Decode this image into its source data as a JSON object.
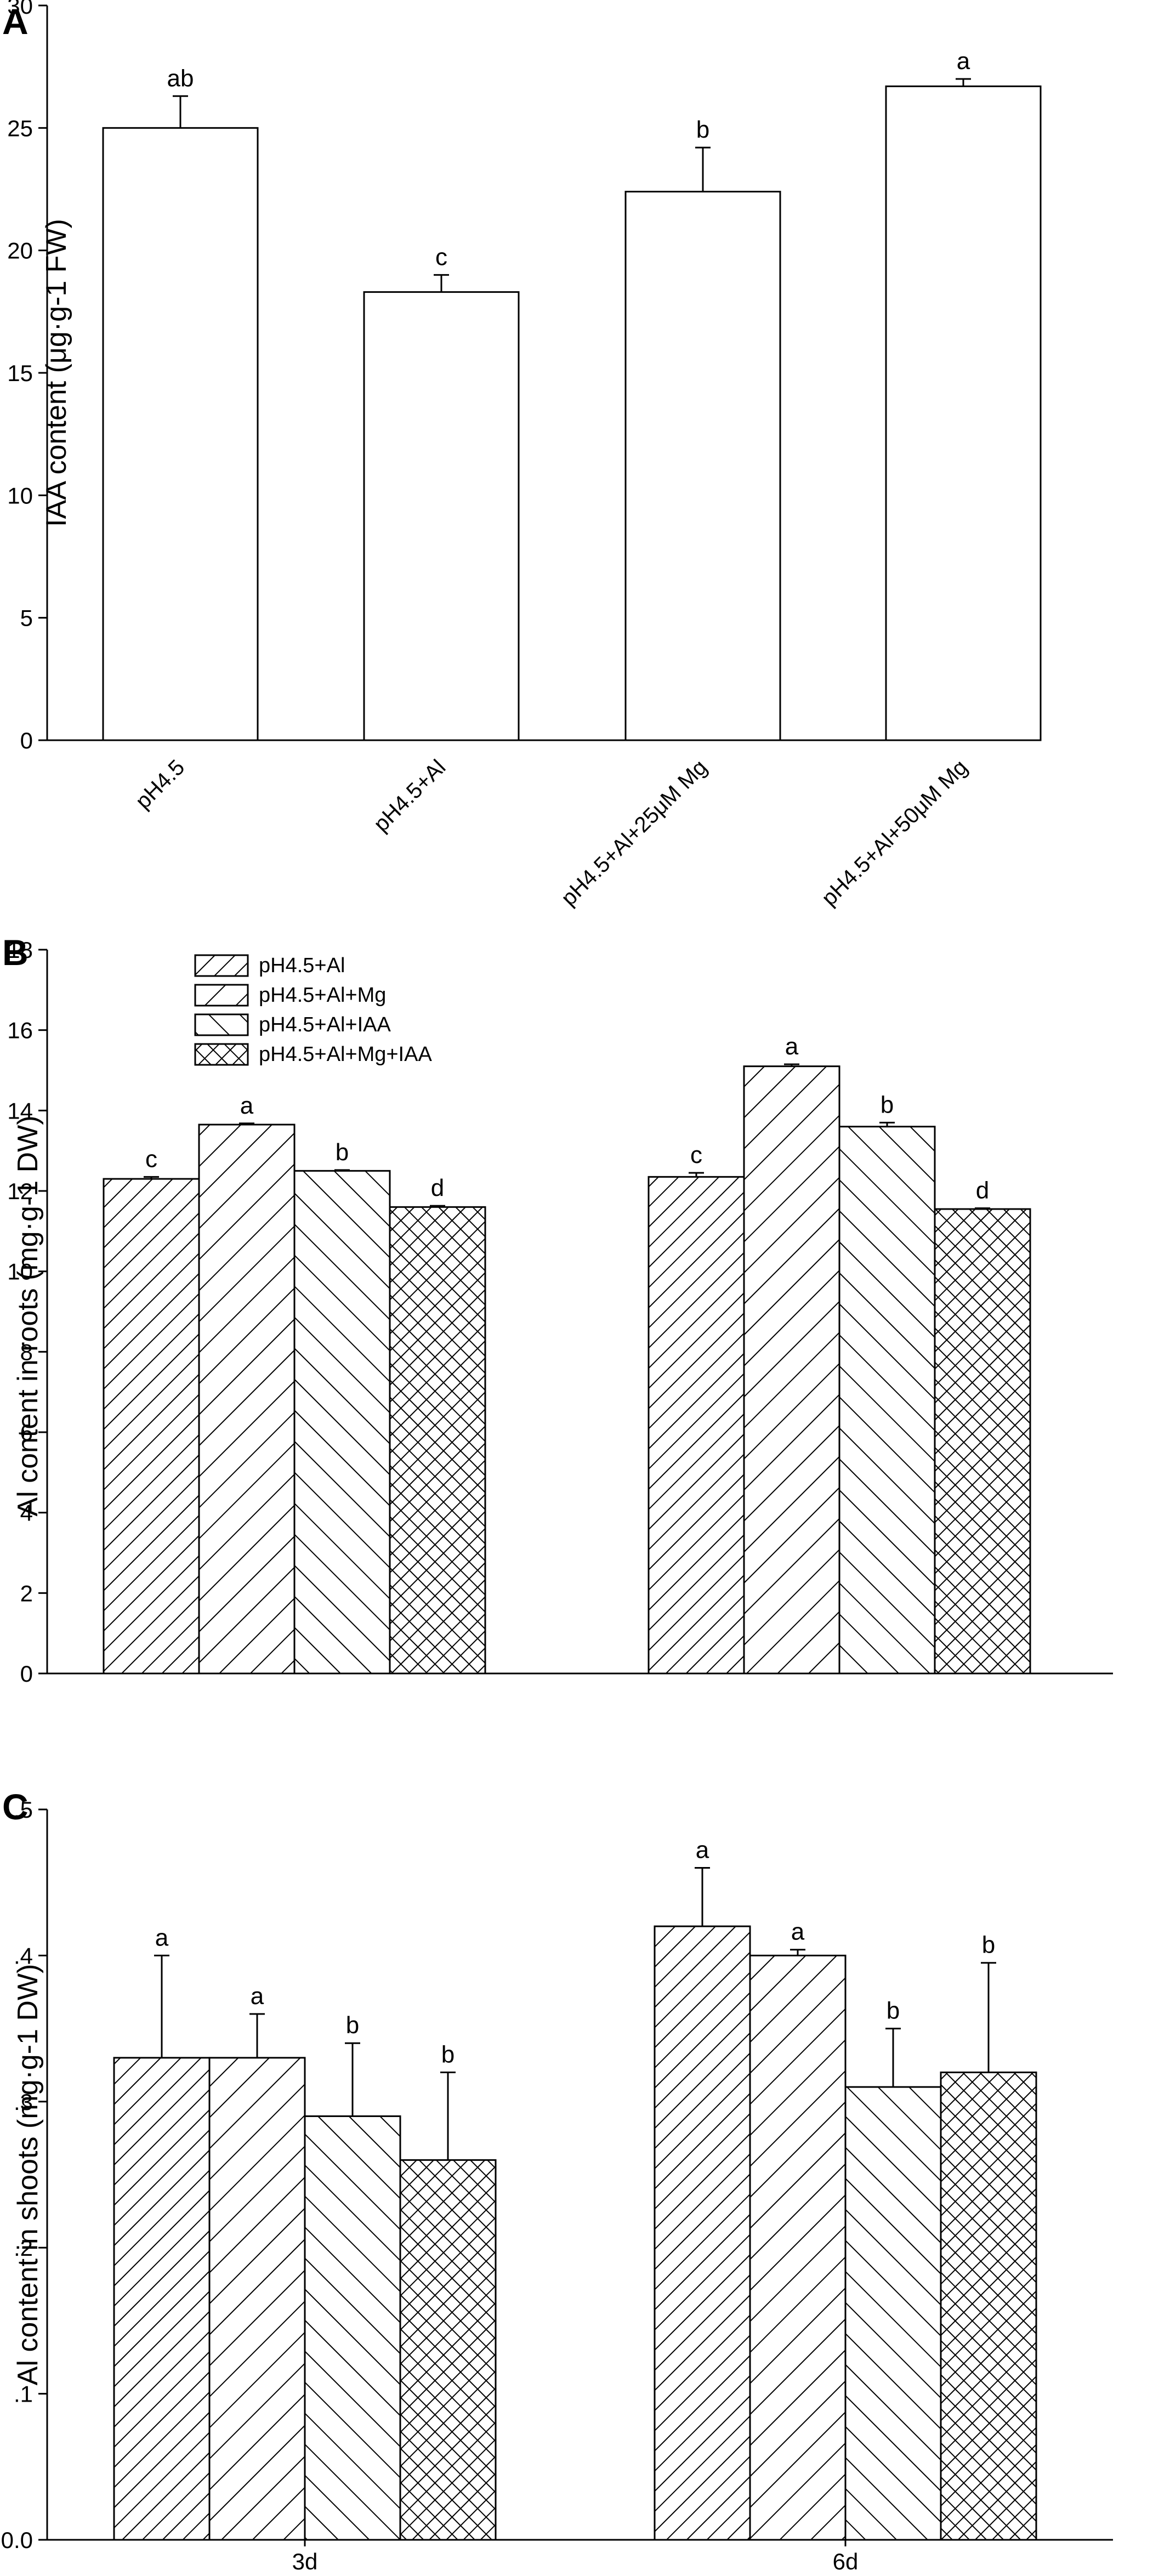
{
  "chart_data": [
    {
      "panel": "A",
      "type": "bar",
      "categories": [
        "pH4.5",
        "pH4.5+Al",
        "pH4.5+Al+25μM Mg",
        "pH4.5+Al+50μM Mg"
      ],
      "series": [
        {
          "name": "IAA content",
          "values": [
            25.0,
            18.3,
            22.4,
            26.7
          ],
          "errors": [
            1.3,
            0.7,
            1.8,
            0.3
          ],
          "significance": [
            "ab",
            "c",
            "b",
            "a"
          ]
        }
      ],
      "ylabel": "IAA content (μg·g-1 FW)",
      "xlabel": "",
      "ylim": [
        0,
        30
      ],
      "yticks": [
        0,
        5,
        10,
        15,
        20,
        25,
        30
      ],
      "ytick_labels": [
        "0",
        "5",
        "10",
        "15",
        "20",
        "25",
        "30"
      ],
      "legend": "none"
    },
    {
      "panel": "B",
      "type": "bar",
      "categories": [
        "3d",
        "6d"
      ],
      "show_category_labels": false,
      "series": [
        {
          "name": "pH4.5+Al",
          "pattern": "dense-diagonal",
          "values": [
            12.3,
            12.35
          ],
          "errors": [
            0.05,
            0.1
          ],
          "significance": [
            "c",
            "c"
          ]
        },
        {
          "name": "pH4.5+Al+Mg",
          "pattern": "wide-diagonal",
          "values": [
            13.65,
            15.1
          ],
          "errors": [
            0.03,
            0.05
          ],
          "significance": [
            "a",
            "a"
          ]
        },
        {
          "name": "pH4.5+Al+IAA",
          "pattern": "back-diagonal",
          "values": [
            12.5,
            13.6
          ],
          "errors": [
            0.02,
            0.1
          ],
          "significance": [
            "b",
            "b"
          ]
        },
        {
          "name": "pH4.5+Al+Mg+IAA",
          "pattern": "crosshatch",
          "values": [
            11.6,
            11.55
          ],
          "errors": [
            0.03,
            0.02
          ],
          "significance": [
            "d",
            "d"
          ]
        }
      ],
      "ylabel": "Al content in roots (mg·g-1 DW)",
      "xlabel": "",
      "ylim": [
        0,
        18
      ],
      "yticks": [
        0,
        2,
        4,
        6,
        8,
        10,
        12,
        14,
        16,
        18
      ],
      "ytick_labels": [
        "0",
        "2",
        "4",
        "6",
        "8",
        "10",
        "12",
        "14",
        "16",
        "18"
      ],
      "legend": "top-left"
    },
    {
      "panel": "C",
      "type": "bar",
      "categories": [
        "3d",
        "6d"
      ],
      "show_category_labels": true,
      "series": [
        {
          "name": "pH4.5+Al",
          "pattern": "dense-diagonal",
          "values": [
            0.33,
            0.42
          ],
          "errors": [
            0.07,
            0.04
          ],
          "significance": [
            "a",
            "a"
          ]
        },
        {
          "name": "pH4.5+Al+Mg",
          "pattern": "wide-diagonal",
          "values": [
            0.33,
            0.4
          ],
          "errors": [
            0.03,
            0.004
          ],
          "significance": [
            "a",
            "a"
          ]
        },
        {
          "name": "pH4.5+Al+IAA",
          "pattern": "back-diagonal",
          "values": [
            0.29,
            0.31
          ],
          "errors": [
            0.05,
            0.04
          ],
          "significance": [
            "b",
            "b"
          ]
        },
        {
          "name": "pH4.5+Al+Mg+IAA",
          "pattern": "crosshatch",
          "values": [
            0.26,
            0.32
          ],
          "errors": [
            0.06,
            0.075
          ],
          "significance": [
            "b",
            "b"
          ]
        }
      ],
      "ylabel": "Al content in shoots (mg·g-1 DW)",
      "xlabel": "",
      "ylim": [
        0,
        0.5
      ],
      "yticks": [
        0,
        0.1,
        0.2,
        0.3,
        0.4,
        0.5
      ],
      "ytick_labels": [
        "0.0",
        ".1",
        ".2",
        ".3",
        ".4",
        ".5"
      ],
      "legend": "none"
    }
  ],
  "colors": {
    "bar_fill": "#ffffff",
    "stroke": "#000000",
    "background": "#ffffff"
  }
}
